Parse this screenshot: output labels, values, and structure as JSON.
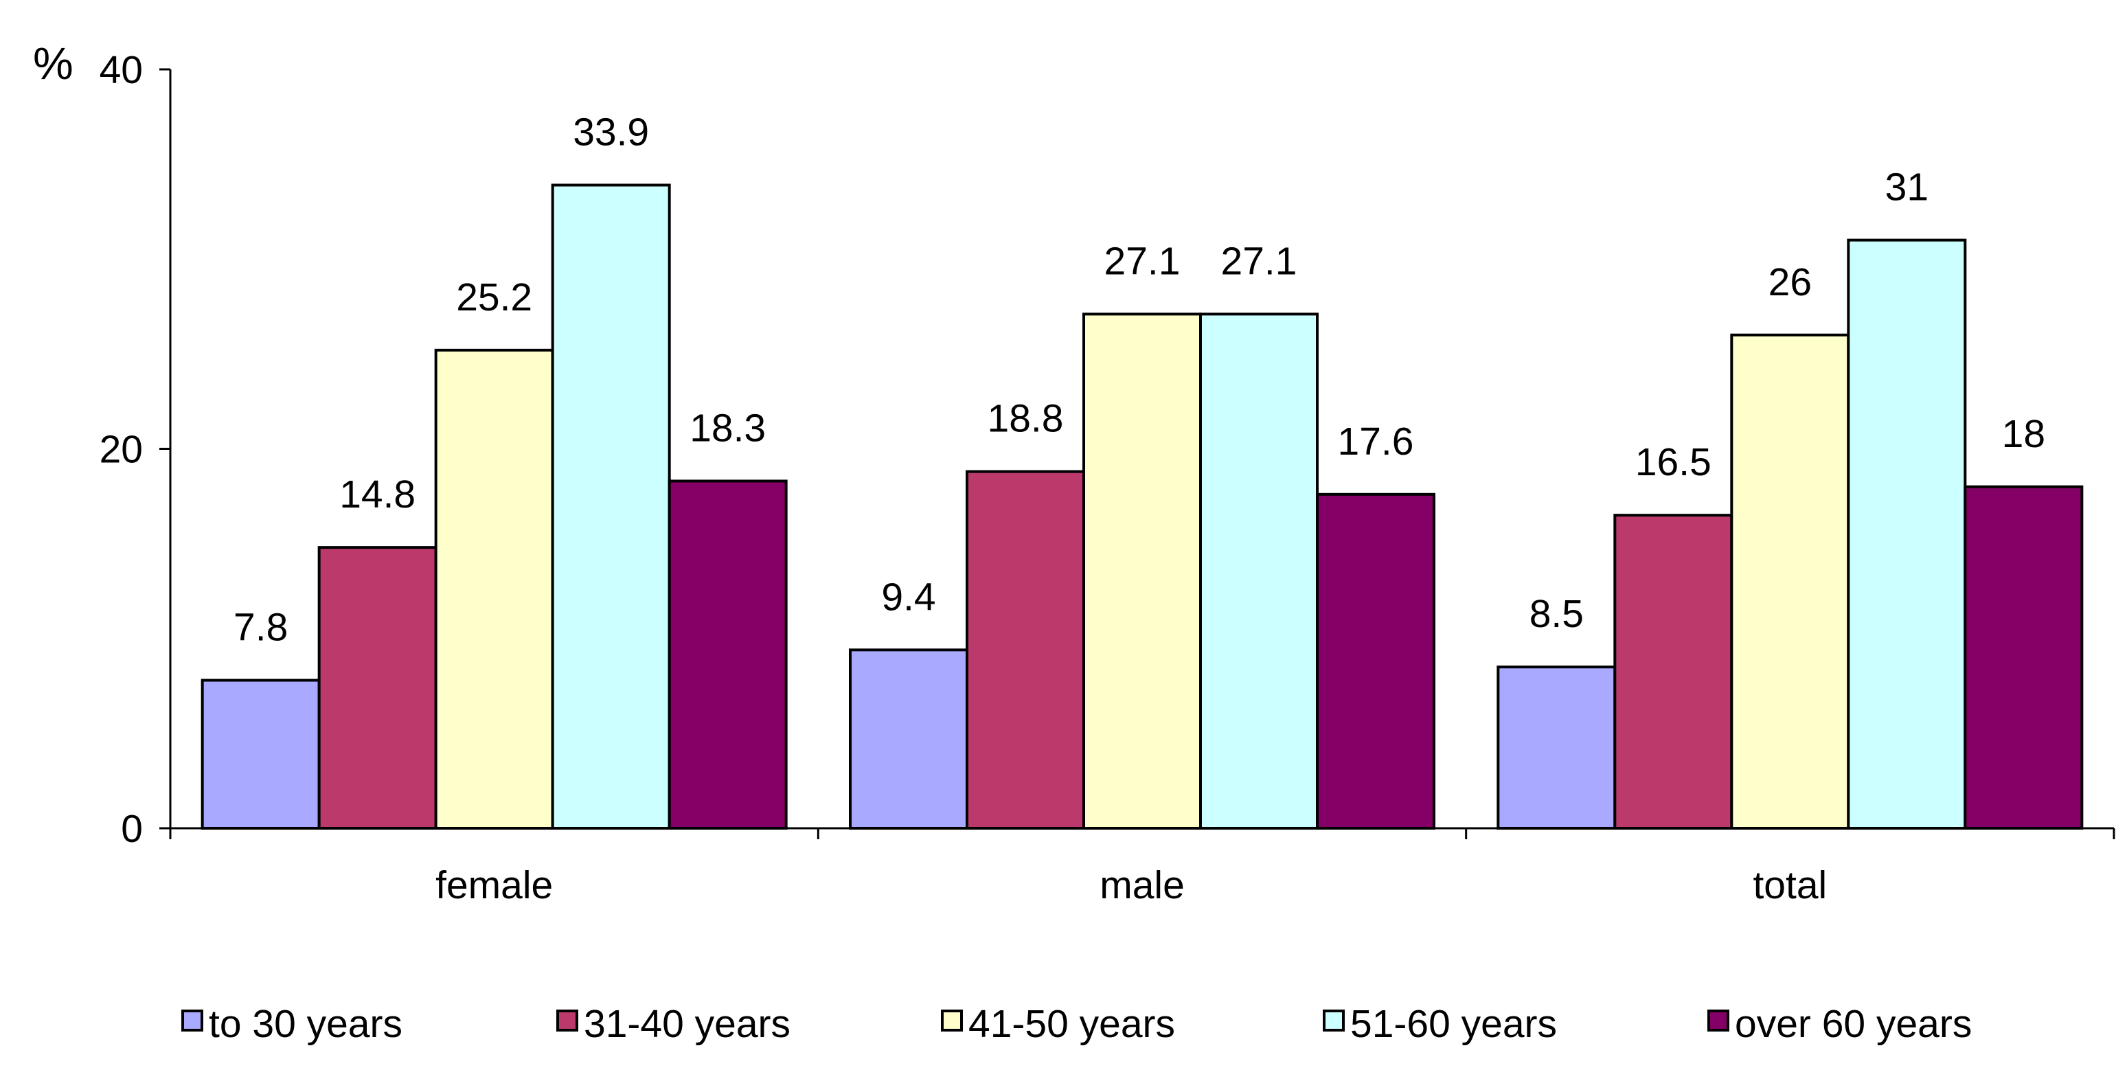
{
  "chart_data": {
    "type": "bar",
    "title": "",
    "xlabel": "",
    "ylabel": "%",
    "ylim": [
      0,
      40
    ],
    "yticks": [
      0,
      20,
      40
    ],
    "grid": false,
    "legend_position": "bottom",
    "categories": [
      "female",
      "male",
      "total"
    ],
    "series": [
      {
        "name": "to 30 years",
        "color": "#a9a9ff",
        "values": [
          7.8,
          9.4,
          8.5
        ],
        "labels": [
          "7.8",
          "9.4",
          "8.5"
        ]
      },
      {
        "name": "31-40 years",
        "color": "#bb3a6b",
        "values": [
          14.8,
          18.8,
          16.5
        ],
        "labels": [
          "14.8",
          "18.8",
          "16.5"
        ]
      },
      {
        "name": "41-50 years",
        "color": "#ffffcc",
        "values": [
          25.2,
          27.1,
          26
        ],
        "labels": [
          "25.2",
          "27.1",
          "26"
        ]
      },
      {
        "name": "51-60 years",
        "color": "#ccffff",
        "values": [
          33.9,
          27.1,
          31
        ],
        "labels": [
          "33.9",
          "27.1",
          "31"
        ]
      },
      {
        "name": "over 60 years",
        "color": "#840067",
        "values": [
          18.3,
          17.6,
          18
        ],
        "labels": [
          "18.3",
          "17.6",
          "18"
        ]
      }
    ]
  }
}
